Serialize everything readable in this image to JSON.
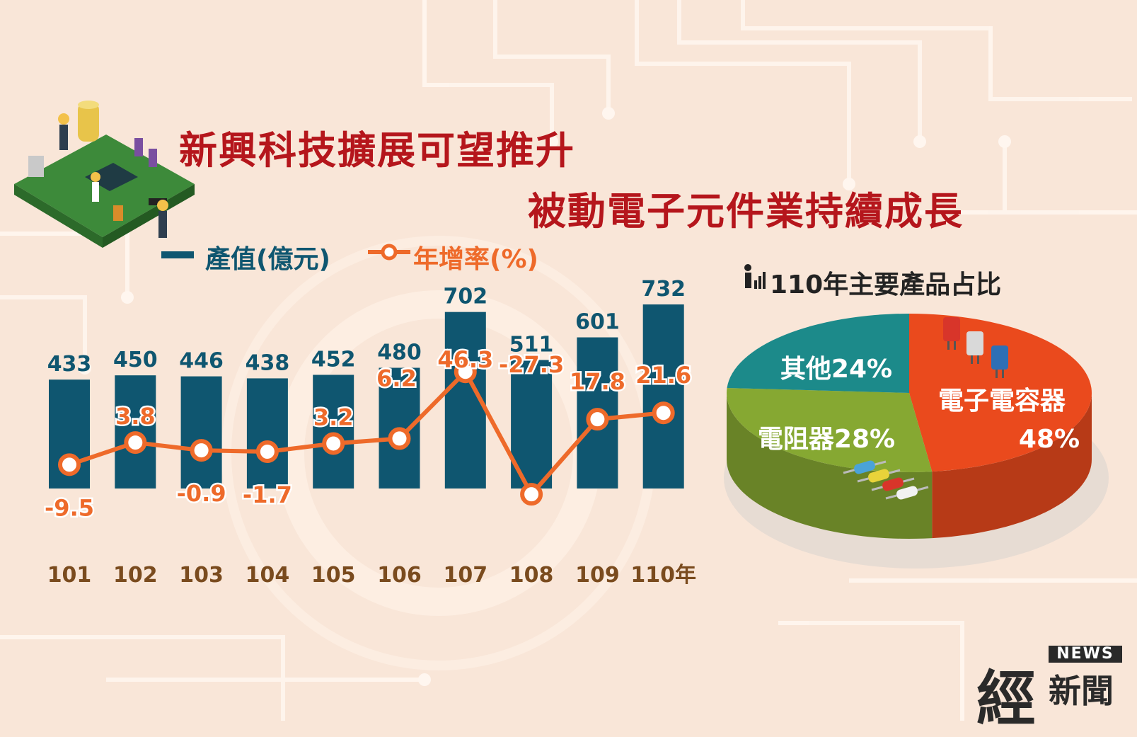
{
  "header": {
    "title_line1": "新興科技擴展可望推升",
    "title_line2": "被動電子元件業持續成長"
  },
  "legend": {
    "bar_label": "產值(億元)",
    "line_label": "年增率(%)"
  },
  "colors": {
    "bar": "#0f5670",
    "line": "#ee6a2a",
    "title": "#b5161c",
    "year": "#7a4b1e",
    "pie_capacitor": "#ea4a1d",
    "pie_resistor": "#86a832",
    "pie_other": "#1c8a8a"
  },
  "chart_data": [
    {
      "type": "bar",
      "categories": [
        "101",
        "102",
        "103",
        "104",
        "105",
        "106",
        "107",
        "108",
        "109",
        "110年"
      ],
      "series": [
        {
          "name": "產值(億元)",
          "values": [
            433,
            450,
            446,
            438,
            452,
            480,
            702,
            511,
            601,
            732
          ]
        },
        {
          "name": "年增率(%)",
          "values": [
            -9.5,
            3.8,
            -0.9,
            -1.7,
            3.2,
            6.2,
            46.3,
            -27.3,
            17.8,
            21.6
          ]
        }
      ],
      "value_labels": [
        "433",
        "450",
        "446",
        "438",
        "452",
        "480",
        "702",
        "511",
        "601",
        "732"
      ],
      "rate_labels": [
        "-9.5",
        "3.8",
        "-0.9",
        "-1.7",
        "3.2",
        "6.2",
        "46.3",
        "-27.3",
        "17.8",
        "21.6"
      ]
    },
    {
      "type": "pie",
      "title": "110年主要產品占比",
      "slices": [
        {
          "name": "電子電容器",
          "label_pct": "48%",
          "value": 48
        },
        {
          "name": "電阻器",
          "label": "電阻器28%",
          "value": 28
        },
        {
          "name": "其他",
          "label": "其他24%",
          "value": 24
        }
      ]
    }
  ],
  "logo": {
    "main": "經",
    "news": "NEWS",
    "sub": "新聞"
  }
}
